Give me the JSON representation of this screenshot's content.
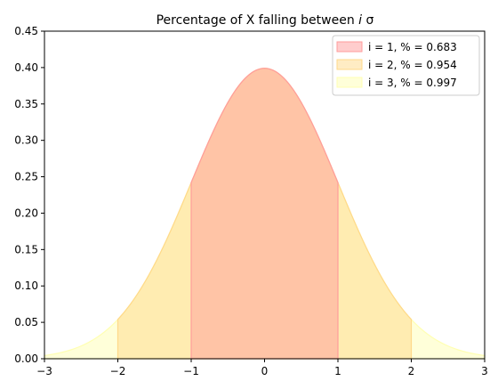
{
  "chart_data": {
    "type": "area",
    "title": "Percentage of X falling between",
    "title_italic": "i",
    "title_suffix": "σ",
    "xlabel": "",
    "ylabel": "",
    "xlim": [
      -3,
      3
    ],
    "ylim": [
      0,
      0.45
    ],
    "x_ticks": [
      -3,
      -2,
      -1,
      0,
      1,
      2,
      3
    ],
    "x_tick_labels": [
      "−3",
      "−2",
      "−1",
      "0",
      "1",
      "2",
      "3"
    ],
    "y_ticks": [
      0,
      0.05,
      0.1,
      0.15,
      0.2,
      0.25,
      0.3,
      0.35,
      0.4,
      0.45
    ],
    "y_tick_labels": [
      "0.00",
      "0.05",
      "0.10",
      "0.15",
      "0.20",
      "0.25",
      "0.30",
      "0.35",
      "0.40",
      "0.45"
    ],
    "grid": false,
    "legend_position": "top-right",
    "curve": {
      "distribution": "standard normal pdf",
      "mean": 0,
      "std": 1,
      "peak": 0.399
    },
    "series": [
      {
        "name": "i = 1, % = 0.683",
        "range": [
          -1,
          1
        ],
        "value": 0.683,
        "color": "#ff9c9c"
      },
      {
        "name": "i = 2, % = 0.954",
        "range": [
          -2,
          2
        ],
        "value": 0.954,
        "color": "#ffd98a"
      },
      {
        "name": "i = 3, % = 0.997",
        "range": [
          -3,
          3
        ],
        "value": 0.997,
        "color": "#ffffb3"
      }
    ]
  }
}
